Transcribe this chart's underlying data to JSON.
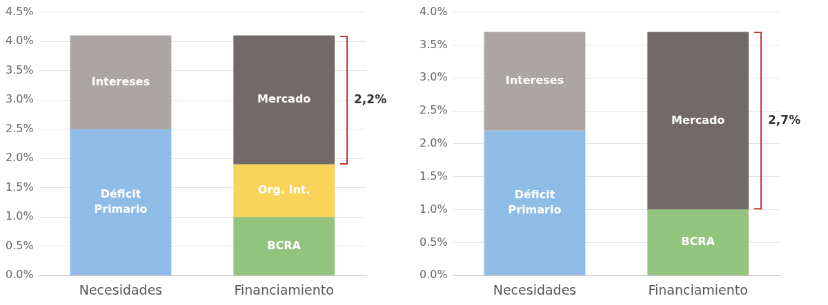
{
  "chart_data": [
    {
      "type": "bar",
      "stacked": true,
      "categories": [
        "Necesidades",
        "Financiamiento"
      ],
      "series": [
        {
          "name": "Déficit Primario",
          "color": "#8fbce6",
          "values": [
            2.5,
            null
          ]
        },
        {
          "name": "Intereses",
          "color": "#aba6a4",
          "values": [
            1.6,
            null
          ]
        },
        {
          "name": "BCRA",
          "color": "#93c47d",
          "values": [
            null,
            1.0
          ]
        },
        {
          "name": "Org. Int.",
          "color": "#f9d35a",
          "values": [
            null,
            0.9
          ]
        },
        {
          "name": "Mercado",
          "color": "#716a68",
          "values": [
            null,
            2.2
          ]
        }
      ],
      "ylim": [
        0,
        4.5
      ],
      "yticks": [
        {
          "value": 0,
          "label": "0.0%"
        },
        {
          "value": 0.5,
          "label": "0.5%"
        },
        {
          "value": 1,
          "label": "1.0%"
        },
        {
          "value": 1.5,
          "label": "1.5%"
        },
        {
          "value": 2,
          "label": "2.0%"
        },
        {
          "value": 2.5,
          "label": "2.5%"
        },
        {
          "value": 3,
          "label": "3.0%"
        },
        {
          "value": 3.5,
          "label": "3.5%"
        },
        {
          "value": 4,
          "label": "4.0%"
        },
        {
          "value": 4.5,
          "label": "4.5%"
        }
      ],
      "grid": "y",
      "legend": false,
      "annotations": [
        "2,2%"
      ]
    },
    {
      "type": "bar",
      "stacked": true,
      "categories": [
        "Necesidades",
        "Financiamiento"
      ],
      "series": [
        {
          "name": "Déficit Primario",
          "color": "#8fbce6",
          "values": [
            2.2,
            null
          ]
        },
        {
          "name": "Intereses",
          "color": "#aba6a4",
          "values": [
            1.5,
            null
          ]
        },
        {
          "name": "BCRA",
          "color": "#93c47d",
          "values": [
            null,
            1.0
          ]
        },
        {
          "name": "Mercado",
          "color": "#716a68",
          "values": [
            null,
            2.7
          ]
        }
      ],
      "ylim": [
        0,
        4.0
      ],
      "yticks": [
        {
          "value": 0,
          "label": "0.0%"
        },
        {
          "value": 0.5,
          "label": "0.5%"
        },
        {
          "value": 1,
          "label": "1.0%"
        },
        {
          "value": 1.5,
          "label": "1.5%"
        },
        {
          "value": 2,
          "label": "2.0%"
        },
        {
          "value": 2.5,
          "label": "2.5%"
        },
        {
          "value": 3,
          "label": "3.0%"
        },
        {
          "value": 3.5,
          "label": "3.5%"
        },
        {
          "value": 4,
          "label": "4.0%"
        }
      ],
      "grid": "y",
      "legend": false,
      "annotations": [
        "2,7%"
      ]
    }
  ]
}
